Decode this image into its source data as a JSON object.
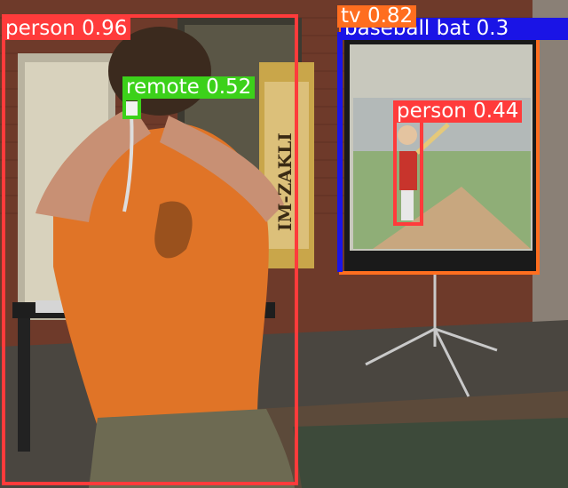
{
  "detections": [
    {
      "label": "person",
      "score": "0.96",
      "color": "#ff3b3b"
    },
    {
      "label": "remote",
      "score": "0.52",
      "color": "#3cd11a"
    },
    {
      "label": "tv",
      "score": "0.82",
      "color": "#ff6e1f"
    },
    {
      "label": "baseball bat",
      "score": "0.3",
      "color": "#1a14e6"
    },
    {
      "label": "person",
      "score": "0.44",
      "color": "#ff3b3b"
    }
  ],
  "banner": {
    "text": "IM-ZAKLI"
  }
}
